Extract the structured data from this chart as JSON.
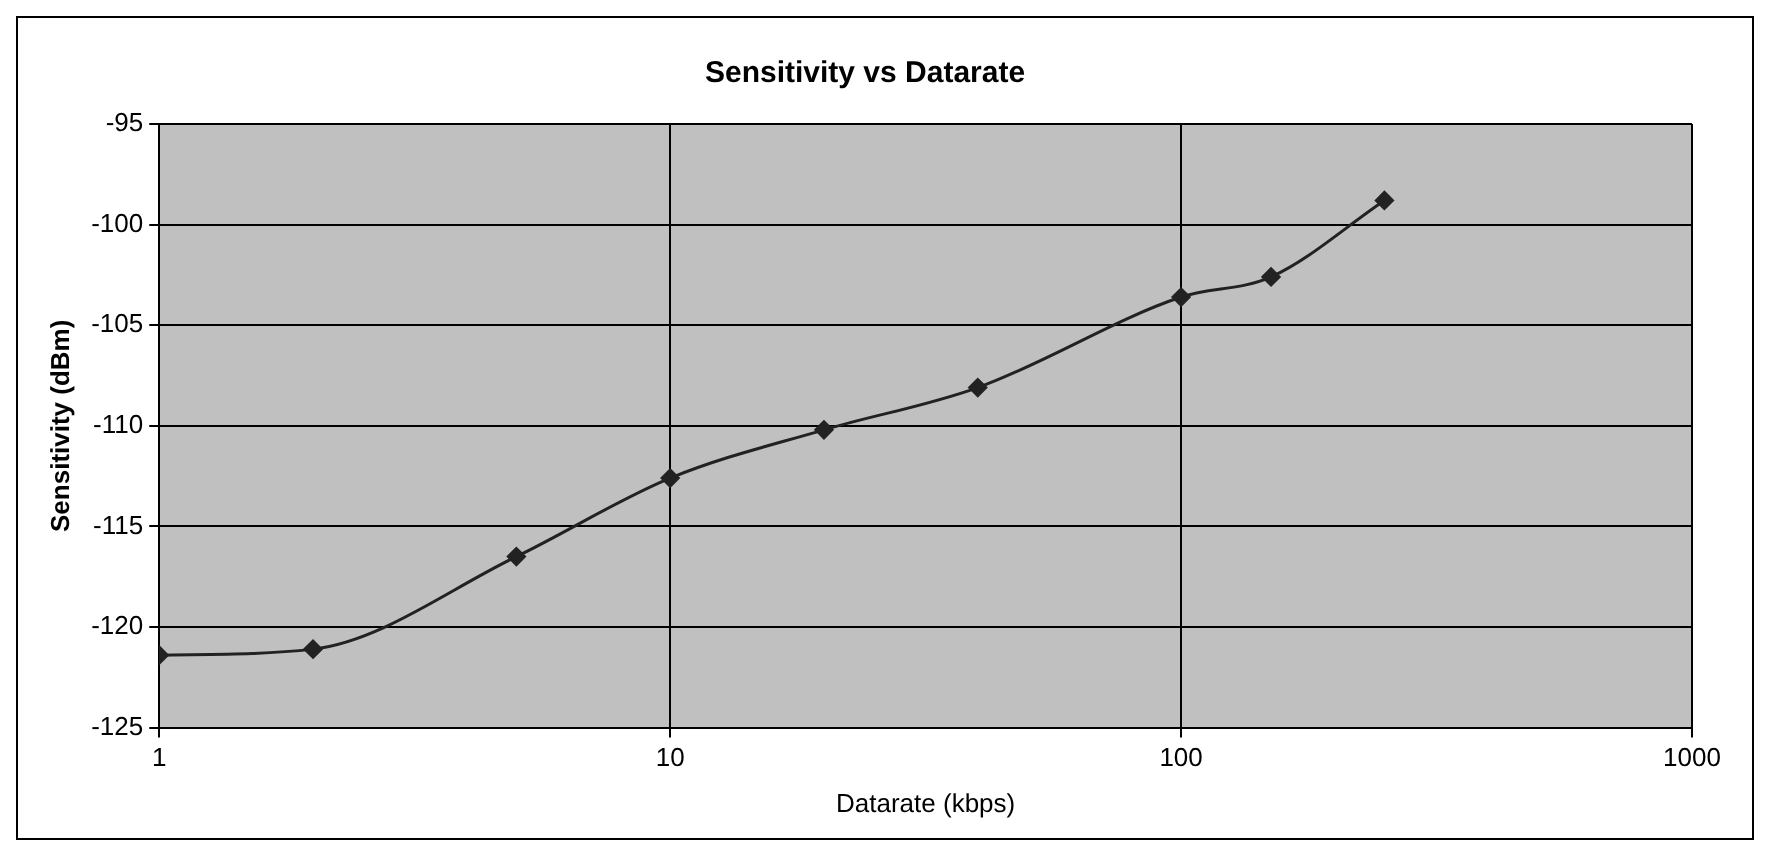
{
  "chart_data": {
    "type": "line",
    "title": "Sensitivity vs Datarate",
    "xlabel": "Datarate (kbps)",
    "ylabel": "Sensitivity (dBm)",
    "x": [
      1,
      2,
      5,
      10,
      20,
      40,
      100,
      150,
      250
    ],
    "series": [
      {
        "color": "#222222",
        "values": [
          -121.4,
          -121.1,
          -116.5,
          -112.6,
          -110.2,
          -108.1,
          -103.6,
          -102.6,
          -98.8
        ]
      }
    ],
    "log": "x",
    "xlim": [
      1,
      1000
    ],
    "xticks": [
      1,
      10,
      100,
      1000
    ],
    "ylim": [
      -125,
      -95
    ],
    "yticks": [
      -125,
      -120,
      -115,
      -110,
      -105,
      -100,
      -95
    ],
    "grid": true,
    "legend": false,
    "marker": "diamond",
    "line_style": "solid"
  }
}
